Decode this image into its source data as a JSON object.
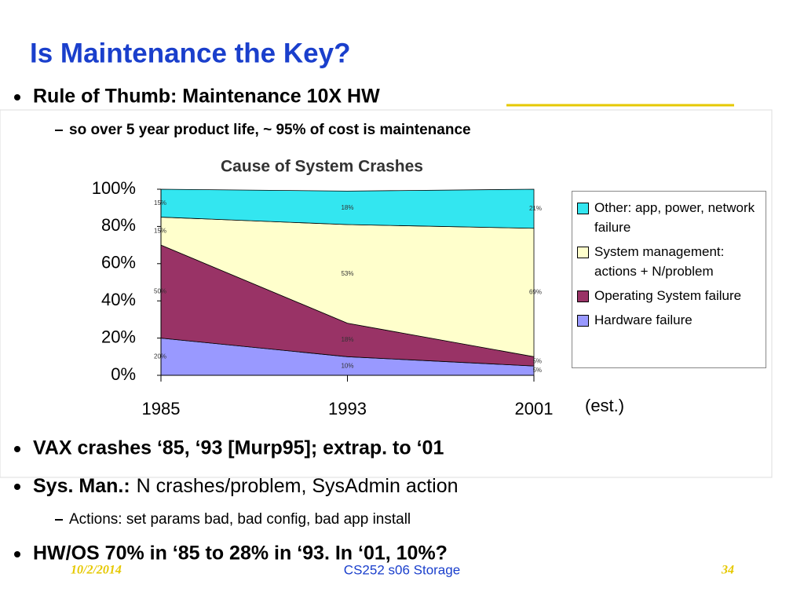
{
  "slide": {
    "title": "Is Maintenance the Key?",
    "bullet1": "Rule of Thumb: Maintenance 10X HW",
    "sub1": "so over 5 year product life, ~ 95% of cost is maintenance",
    "bullet2": "VAX crashes ‘85, ‘93 [Murp95]; extrap. to ‘01",
    "bullet3_bold": "Sys. Man.:",
    "bullet3_rest": "N crashes/problem, SysAdmin action",
    "sub3": "Actions: set params bad, bad config, bad app install",
    "bullet4": "HW/OS 70% in ‘85 to 28% in ‘93. In ‘01, 10%?",
    "footer_date": "10/2/2014",
    "footer_title": "CS252 s06 Storage",
    "footer_page": "34"
  },
  "chart_data": {
    "type": "stacked_area",
    "title": "Cause of System Crashes",
    "annotation": "(est.)",
    "categories": [
      "1985",
      "1993",
      "2001"
    ],
    "series": [
      {
        "name": "Hardware failure",
        "color": "#9999ff",
        "values": [
          20,
          10,
          5
        ],
        "value_labels": [
          "20%",
          "10%",
          "5%"
        ]
      },
      {
        "name": "Operating System failure",
        "color": "#993366",
        "values": [
          50,
          18,
          5
        ],
        "value_labels": [
          "50%",
          "18%",
          "5%"
        ]
      },
      {
        "name": "System management: actions + N/problem",
        "color": "#ffffcc",
        "values": [
          15,
          53,
          69
        ],
        "value_labels": [
          "15%",
          "53%",
          "69%"
        ]
      },
      {
        "name": "Other: app, power, network failure",
        "color": "#33e6f0",
        "values": [
          15,
          18,
          21
        ],
        "value_labels": [
          "15%",
          "18%",
          "21%"
        ]
      }
    ],
    "ylim": [
      0,
      100
    ],
    "yticks": [
      {
        "value": 0,
        "label": "0%"
      },
      {
        "value": 20,
        "label": "20%"
      },
      {
        "value": 40,
        "label": "40%"
      },
      {
        "value": 60,
        "label": "60%"
      },
      {
        "value": 80,
        "label": "80%"
      },
      {
        "value": 100,
        "label": "100%"
      }
    ],
    "legend": "right"
  }
}
